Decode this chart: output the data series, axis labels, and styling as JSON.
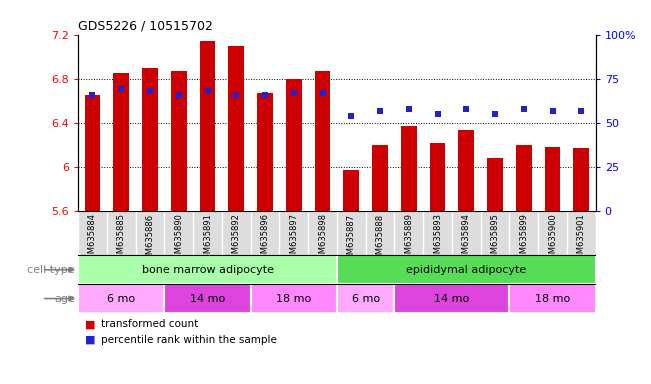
{
  "title": "GDS5226 / 10515702",
  "samples": [
    "GSM635884",
    "GSM635885",
    "GSM635886",
    "GSM635890",
    "GSM635891",
    "GSM635892",
    "GSM635896",
    "GSM635897",
    "GSM635898",
    "GSM635887",
    "GSM635888",
    "GSM635889",
    "GSM635893",
    "GSM635894",
    "GSM635895",
    "GSM635899",
    "GSM635900",
    "GSM635901"
  ],
  "bar_values": [
    6.65,
    6.85,
    6.9,
    6.87,
    7.14,
    7.1,
    6.67,
    6.8,
    6.87,
    5.97,
    6.2,
    6.37,
    6.22,
    6.34,
    6.08,
    6.2,
    6.18,
    6.17
  ],
  "percentile_values": [
    66,
    69,
    68,
    66,
    68,
    66,
    66,
    67,
    67,
    54,
    57,
    58,
    55,
    58,
    55,
    58,
    57,
    57
  ],
  "ymin": 5.6,
  "ymax": 7.2,
  "yticks": [
    5.6,
    6.0,
    6.4,
    6.8,
    7.2
  ],
  "right_yticks": [
    0,
    25,
    50,
    75,
    100
  ],
  "bar_color": "#CC0000",
  "dot_color": "#2222CC",
  "cell_type_groups": [
    {
      "label": "bone marrow adipocyte",
      "start": 0,
      "end": 9,
      "color": "#AAFFAA"
    },
    {
      "label": "epididymal adipocyte",
      "start": 9,
      "end": 18,
      "color": "#55DD55"
    }
  ],
  "age_groups": [
    {
      "label": "6 mo",
      "start": 0,
      "end": 3,
      "color": "#FFAAFF"
    },
    {
      "label": "14 mo",
      "start": 3,
      "end": 6,
      "color": "#DD44DD"
    },
    {
      "label": "18 mo",
      "start": 6,
      "end": 9,
      "color": "#FF88FF"
    },
    {
      "label": "6 mo",
      "start": 9,
      "end": 11,
      "color": "#FFAAFF"
    },
    {
      "label": "14 mo",
      "start": 11,
      "end": 15,
      "color": "#DD44DD"
    },
    {
      "label": "18 mo",
      "start": 15,
      "end": 18,
      "color": "#FF88FF"
    }
  ],
  "legend_items": [
    {
      "label": "transformed count",
      "color": "#CC0000"
    },
    {
      "label": "percentile rank within the sample",
      "color": "#2222CC"
    }
  ],
  "cell_type_label": "cell type",
  "age_label": "age",
  "bar_width": 0.55,
  "plot_bg_color": "#FFFFFF",
  "xtick_bg_color": "#DDDDDD"
}
